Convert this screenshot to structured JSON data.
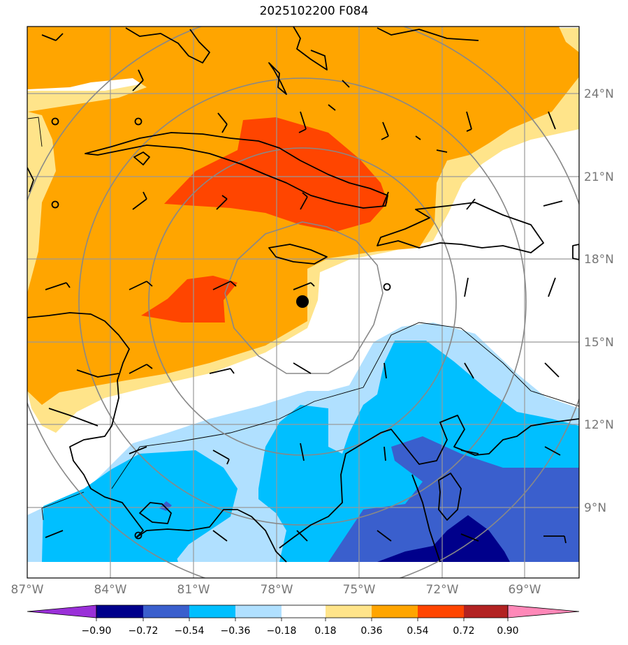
{
  "title": "2025102200 F084",
  "map": {
    "projection": "plate-carree",
    "lon_range": [
      -87,
      -66.5
    ],
    "lat_range": [
      6.5,
      26.5
    ],
    "lon_ticks": [
      -87,
      -84,
      -81,
      -78,
      -75,
      -72,
      -69
    ],
    "lat_ticks": [
      9,
      12,
      15,
      18,
      21,
      24
    ],
    "lon_tick_labels": [
      "87°W",
      "84°W",
      "81°W",
      "78°W",
      "75°W",
      "72°W",
      "69°W"
    ],
    "lat_tick_labels": [
      "9°N",
      "12°N",
      "15°N",
      "18°N",
      "21°N",
      "24°N"
    ],
    "storm_center": {
      "lon": -77.0,
      "lat": 16.5
    },
    "range_rings_deg": [
      3,
      6,
      9
    ]
  },
  "colorbar": {
    "tick_labels": [
      "−0.90",
      "−0.72",
      "−0.54",
      "−0.36",
      "−0.18",
      "0.18",
      "0.36",
      "0.54",
      "0.72",
      "0.90"
    ],
    "colors": [
      "#9a30d8",
      "#00008b",
      "#3a5fcd",
      "#00bfff",
      "#b0e0ff",
      "#ffffff",
      "#ffe48a",
      "#ffa500",
      "#ff4500",
      "#b22222",
      "#ff88b8"
    ]
  },
  "colors": {
    "neg_090": "#00008b",
    "neg_072": "#3a5fcd",
    "neg_054": "#00bfff",
    "neg_036": "#b0e0ff",
    "pos_018": "#ffe48a",
    "pos_036": "#ffa500",
    "pos_054": "#ff4500",
    "grid": "#999999",
    "ring": "#888888"
  }
}
